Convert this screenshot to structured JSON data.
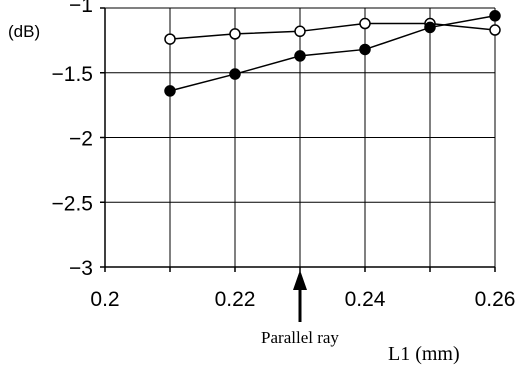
{
  "chart_data": {
    "type": "line",
    "title": "",
    "ylabel": "(dB)",
    "xlabel": "L1 (mm)",
    "xlim": [
      0.2,
      0.26
    ],
    "ylim": [
      -3,
      -1
    ],
    "x_ticks": [
      "0.2",
      "0.22",
      "0.24",
      "0.26"
    ],
    "y_ticks": [
      "-1",
      "-1.5",
      "-2",
      "-2.5",
      "-3"
    ],
    "grid": true,
    "x": [
      0.21,
      0.22,
      0.23,
      0.24,
      0.25,
      0.26
    ],
    "series": [
      {
        "marker": "open-circle",
        "color": "#000000",
        "values": [
          -1.24,
          -1.2,
          -1.18,
          -1.12,
          -1.12,
          -1.17
        ]
      },
      {
        "marker": "filled-circle",
        "color": "#000000",
        "values": [
          -1.64,
          -1.51,
          -1.37,
          -1.32,
          -1.15,
          -1.06
        ]
      }
    ],
    "annotations": [
      {
        "text": "Parallel ray",
        "x": 0.23,
        "arrow": "up"
      }
    ]
  }
}
